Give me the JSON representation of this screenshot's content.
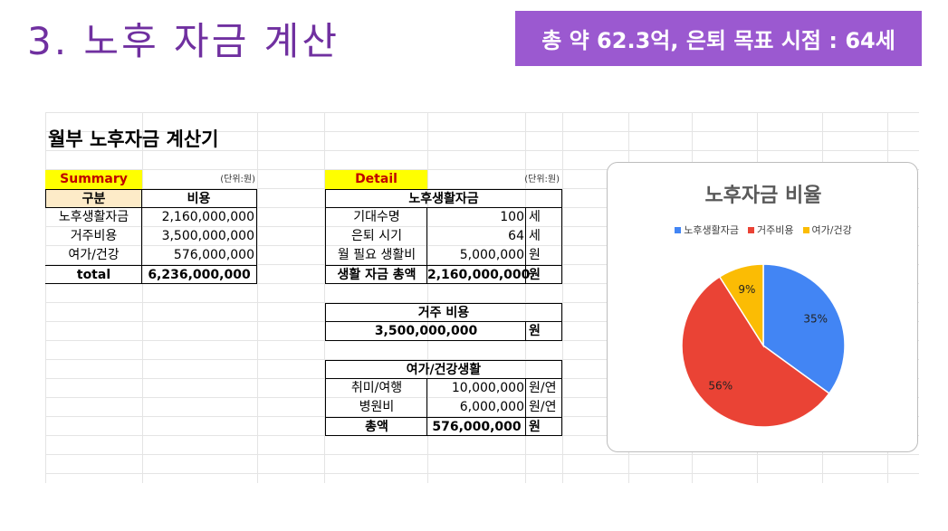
{
  "slide": {
    "title": "3. 노후 자금 계산",
    "banner": "총 약 62.3억, 은퇴 목표 시점 : 64세"
  },
  "calculator_title": "월부 노후자금 계산기",
  "summary": {
    "label": "Summary",
    "unit": "(단위:원)",
    "headers": [
      "구분",
      "비용"
    ],
    "rows": [
      {
        "name": "노후생활자금",
        "value": "2,160,000,000"
      },
      {
        "name": "거주비용",
        "value": "3,500,000,000"
      },
      {
        "name": "여가/건강",
        "value": "576,000,000"
      }
    ],
    "total_label": "total",
    "total_value": "6,236,000,000"
  },
  "detail": {
    "label": "Detail",
    "unit": "(단위:원)",
    "living": {
      "header": "노후생활자금",
      "rows": [
        {
          "name": "기대수명",
          "value": "100",
          "unit": "세"
        },
        {
          "name": "은퇴 시기",
          "value": "64",
          "unit": "세"
        },
        {
          "name": "월 필요 생활비",
          "value": "5,000,000",
          "unit": "원"
        }
      ],
      "total_label": "생활 자금 총액",
      "total_value": "2,160,000,000",
      "total_unit": "원"
    },
    "housing": {
      "header": "거주 비용",
      "value": "3,500,000,000",
      "unit": "원"
    },
    "leisure": {
      "header": "여가/건강생활",
      "rows": [
        {
          "name": "취미/여행",
          "value": "10,000,000",
          "unit": "원/연"
        },
        {
          "name": "병원비",
          "value": "6,000,000",
          "unit": "원/연"
        }
      ],
      "total_label": "총액",
      "total_value": "576,000,000",
      "total_unit": "원"
    }
  },
  "chart_data": {
    "type": "pie",
    "title": "노후자금 비율",
    "legend_position": "top",
    "labels": [
      "노후생활자금",
      "거주비용",
      "여가/건강"
    ],
    "values": [
      35,
      56,
      9
    ],
    "data_labels": [
      "35%",
      "56%",
      "9%"
    ],
    "colors": [
      "#4285f4",
      "#ea4335",
      "#fbbc04"
    ]
  }
}
